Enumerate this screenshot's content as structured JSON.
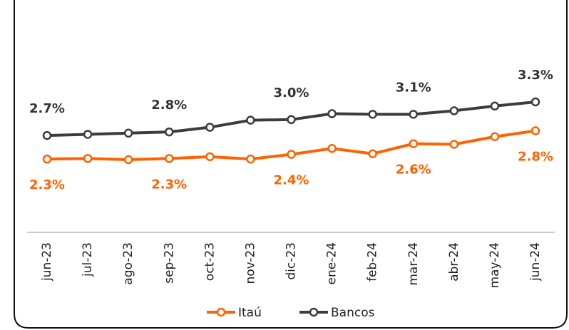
{
  "chart_data": {
    "type": "line",
    "categories": [
      "jun-23",
      "jul-23",
      "ago-23",
      "sep-23",
      "oct-23",
      "nov-23",
      "dic-23",
      "ene-24",
      "feb-24",
      "mar-24",
      "abr-24",
      "may-24",
      "jun-24"
    ],
    "series": [
      {
        "name": "Itaú",
        "color": "#ff6200",
        "values": [
          2.3,
          2.31,
          2.29,
          2.31,
          2.34,
          2.3,
          2.38,
          2.48,
          2.39,
          2.56,
          2.55,
          2.68,
          2.78
        ],
        "value_labels": [
          "2.3%",
          null,
          null,
          "2.3%",
          null,
          null,
          "2.4%",
          null,
          null,
          "2.6%",
          null,
          null,
          "2.8%"
        ]
      },
      {
        "name": "Bancos",
        "color": "#3c3c3c",
        "values": [
          2.7,
          2.72,
          2.74,
          2.76,
          2.84,
          2.96,
          2.97,
          3.07,
          3.06,
          3.06,
          3.12,
          3.2,
          3.27
        ],
        "value_labels": [
          "2.7%",
          null,
          null,
          "2.8%",
          null,
          null,
          "3.0%",
          null,
          null,
          "3.1%",
          null,
          null,
          "3.3%"
        ]
      }
    ]
  }
}
